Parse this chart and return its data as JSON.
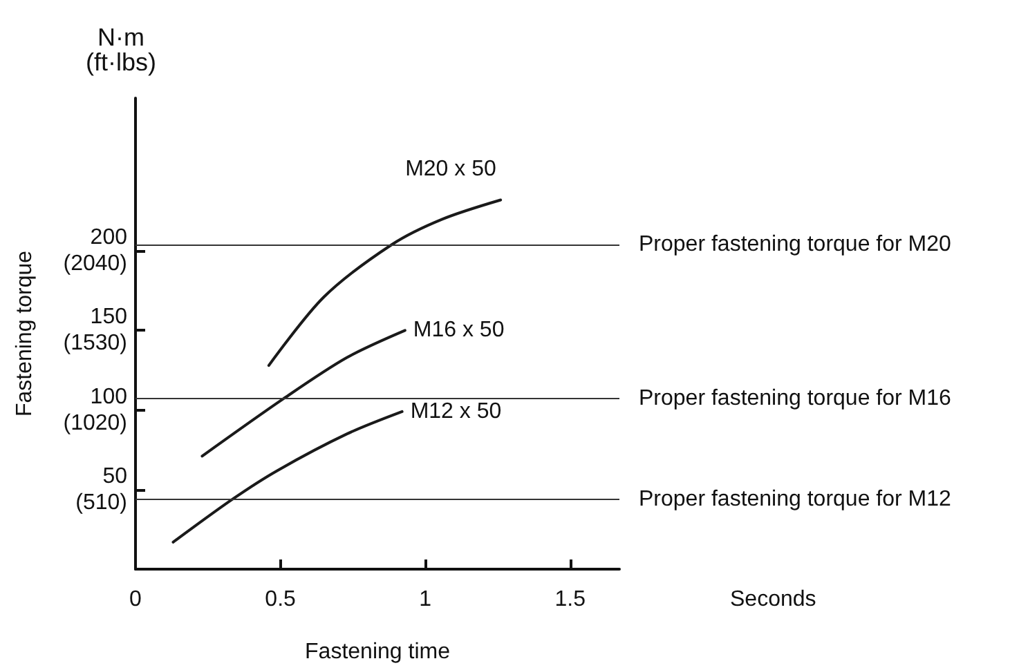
{
  "chart_data": {
    "type": "line",
    "xlabel": "Fastening time",
    "y2label": "Fastening torque",
    "annotations": [
      "N·m\n(ft·lbs)",
      "Seconds"
    ],
    "xlim": [
      0,
      1.67
    ],
    "xticks": [
      0,
      0.5,
      1,
      1.5
    ],
    "ylim": [
      0,
      296
    ],
    "yticks": [
      50,
      100,
      150,
      200
    ],
    "y2lim": [
      0,
      3019.2
    ],
    "y2ticks": [
      {
        "value": 510,
        "label": "(510)"
      },
      {
        "value": 1020,
        "label": "(1020)"
      },
      {
        "value": 1530,
        "label": "(1530)"
      },
      {
        "value": 2040,
        "label": "(2040)"
      }
    ],
    "grid": false,
    "legend": false,
    "marker": "none",
    "line_style": "solid",
    "series": [
      {
        "name": "M20 x 50",
        "color": "#1a1a1a",
        "x": [
          0.46,
          0.65,
          0.885,
          1.06,
          1.26
        ],
        "values": [
          128,
          171,
          204,
          220,
          232
        ]
      },
      {
        "name": "M16 x 50",
        "color": "#1a1a1a",
        "x": [
          0.23,
          0.51,
          0.73,
          0.93
        ],
        "values": [
          71,
          107,
          133,
          150
        ]
      },
      {
        "name": "M12 x 50",
        "color": "#1a1a1a",
        "x": [
          0.13,
          0.335,
          0.49,
          0.73,
          0.92
        ],
        "values": [
          17,
          44,
          62,
          85,
          99
        ]
      }
    ],
    "ref_lines": [
      {
        "axis": "y",
        "value": 204,
        "label": "Proper fastening torque for M20",
        "color": "#333333"
      },
      {
        "axis": "y",
        "value": 107,
        "label": "Proper fastening torque for M16",
        "color": "#333333"
      },
      {
        "axis": "y",
        "value": 44,
        "label": "Proper fastening torque for M12",
        "color": "#333333"
      }
    ]
  }
}
